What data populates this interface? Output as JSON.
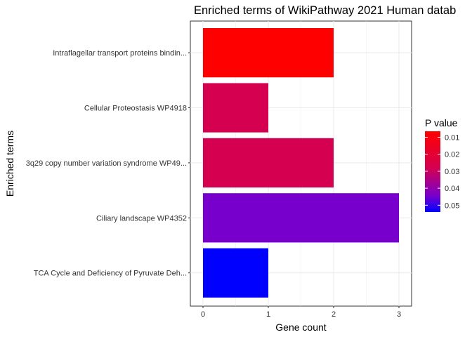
{
  "chart_data": {
    "type": "bar",
    "orientation": "horizontal",
    "title": "Enriched terms of WikiPathway 2021 Human datab",
    "xlabel": "Gene count",
    "ylabel": "Enriched terms",
    "xlim": [
      0,
      3
    ],
    "x_ticks": [
      "0",
      "1",
      "2",
      "3"
    ],
    "grid": true,
    "categories": [
      "Intraflagellar transport proteins bindin...",
      "Cellular Proteostasis WP4918",
      "3q29 copy number variation syndrome WP49...",
      "Ciliary landscape WP4352",
      "TCA Cycle and Deficiency of Pyruvate Deh..."
    ],
    "values": [
      2,
      1,
      2,
      3,
      1
    ],
    "p_values": [
      0.0065,
      0.023,
      0.023,
      0.044,
      0.054
    ],
    "bar_colors": [
      "#FF0000",
      "#D5004F",
      "#D5004F",
      "#7700CC",
      "#0000FF"
    ],
    "legend": {
      "title": "P value",
      "position": "right",
      "labels": [
        "0.01",
        "0.02",
        "0.03",
        "0.04",
        "0.05"
      ],
      "values": [
        0.01,
        0.02,
        0.03,
        0.04,
        0.05
      ],
      "range": [
        0.0065,
        0.054
      ],
      "color_low_p": "#FF0000",
      "color_high_p": "#0000FF"
    }
  }
}
